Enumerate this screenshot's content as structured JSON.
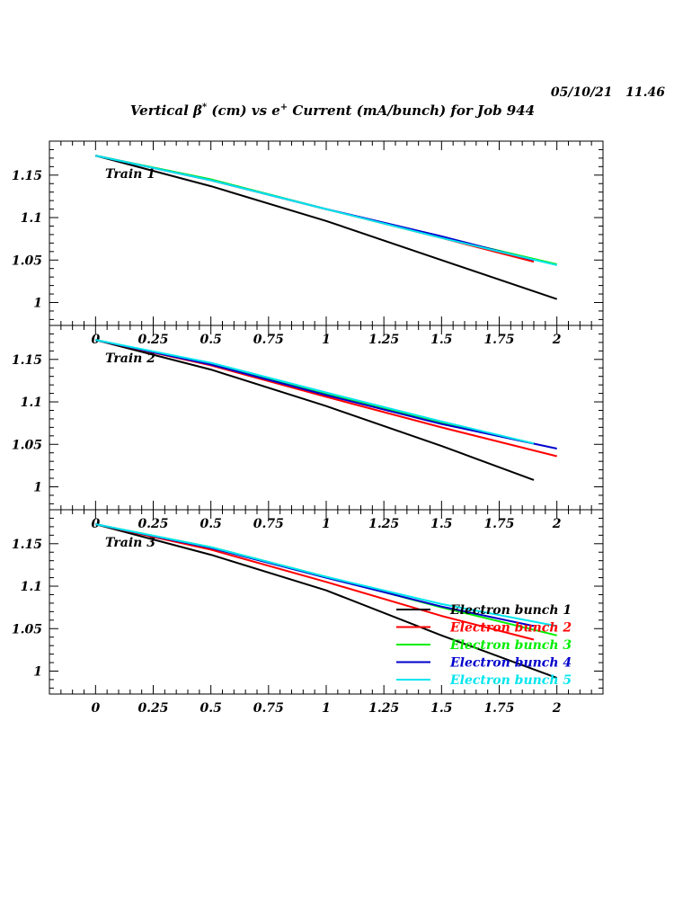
{
  "datestamp": "05/10/21   11.46",
  "title": {
    "prefix": "Vertical β",
    "sup1": "*",
    "middle": " (cm) vs e",
    "sup2": "+",
    "suffix": " Current (mA/bunch) for Job 944"
  },
  "colors": {
    "Electron bunch 1": "#000000",
    "Electron bunch 2": "#ff0000",
    "Electron bunch 3": "#00ee00",
    "Electron bunch 4": "#0000cc",
    "Electron bunch 5": "#00e5ee"
  },
  "chart_data": [
    {
      "type": "line",
      "annotation": "Train 1",
      "xlim": [
        -0.2,
        2.2
      ],
      "ylim": [
        0.973,
        1.19
      ],
      "xticks": [
        "0",
        "0.25",
        "0.5",
        "0.75",
        "1",
        "1.25",
        "1.5",
        "1.75",
        "2"
      ],
      "yticks": [
        "1",
        "1.05",
        "1.1",
        "1.15"
      ],
      "series": [
        {
          "name": "Electron bunch 1",
          "x": [
            0,
            0.5,
            1,
            1.5,
            2
          ],
          "y": [
            1.173,
            1.137,
            1.096,
            1.05,
            1.004
          ]
        },
        {
          "name": "Electron bunch 2",
          "x": [
            0,
            0.5,
            1,
            1.5,
            1.9
          ],
          "y": [
            1.173,
            1.144,
            1.11,
            1.076,
            1.048
          ]
        },
        {
          "name": "Electron bunch 3",
          "x": [
            0,
            0.5,
            1,
            1.5,
            2
          ],
          "y": [
            1.173,
            1.145,
            1.11,
            1.077,
            1.045
          ]
        },
        {
          "name": "Electron bunch 4",
          "x": [
            0,
            0.5,
            1,
            1.5,
            1.9
          ],
          "y": [
            1.173,
            1.144,
            1.11,
            1.078,
            1.05
          ]
        },
        {
          "name": "Electron bunch 5",
          "x": [
            0,
            0.5,
            1,
            1.5,
            2
          ],
          "y": [
            1.173,
            1.144,
            1.11,
            1.076,
            1.044
          ]
        }
      ]
    },
    {
      "type": "line",
      "annotation": "Train 2",
      "xlim": [
        -0.2,
        2.2
      ],
      "ylim": [
        0.973,
        1.19
      ],
      "xticks": [
        "0",
        "0.25",
        "0.5",
        "0.75",
        "1",
        "1.25",
        "1.5",
        "1.75",
        "2"
      ],
      "yticks": [
        "1",
        "1.05",
        "1.1",
        "1.15"
      ],
      "series": [
        {
          "name": "Electron bunch 1",
          "x": [
            0,
            0.5,
            1,
            1.5,
            1.9
          ],
          "y": [
            1.173,
            1.138,
            1.095,
            1.048,
            1.008
          ]
        },
        {
          "name": "Electron bunch 2",
          "x": [
            0,
            0.5,
            1,
            1.5,
            2
          ],
          "y": [
            1.173,
            1.143,
            1.106,
            1.07,
            1.036
          ]
        },
        {
          "name": "Electron bunch 3",
          "x": [
            0,
            0.5,
            1,
            1.5,
            1.9
          ],
          "y": [
            1.173,
            1.145,
            1.11,
            1.076,
            1.051
          ]
        },
        {
          "name": "Electron bunch 4",
          "x": [
            0,
            0.5,
            1,
            1.5,
            2
          ],
          "y": [
            1.173,
            1.144,
            1.108,
            1.074,
            1.045
          ]
        },
        {
          "name": "Electron bunch 5",
          "x": [
            0,
            0.5,
            1,
            1.5,
            1.9
          ],
          "y": [
            1.173,
            1.146,
            1.111,
            1.077,
            1.051
          ]
        }
      ]
    },
    {
      "type": "line",
      "annotation": "Train 3",
      "xlim": [
        -0.2,
        2.2
      ],
      "ylim": [
        0.973,
        1.19
      ],
      "xticks": [
        "0",
        "0.25",
        "0.5",
        "0.75",
        "1",
        "1.25",
        "1.5",
        "1.75",
        "2"
      ],
      "yticks": [
        "1",
        "1.05",
        "1.1",
        "1.15"
      ],
      "legend": "bottom-right",
      "series": [
        {
          "name": "Electron bunch 1",
          "x": [
            0,
            0.5,
            1,
            1.5,
            2
          ],
          "y": [
            1.173,
            1.137,
            1.095,
            1.042,
            0.992
          ]
        },
        {
          "name": "Electron bunch 2",
          "x": [
            0,
            0.5,
            1,
            1.5,
            1.9
          ],
          "y": [
            1.173,
            1.143,
            1.105,
            1.065,
            1.037
          ]
        },
        {
          "name": "Electron bunch 3",
          "x": [
            0,
            0.5,
            1,
            1.5,
            2
          ],
          "y": [
            1.173,
            1.146,
            1.111,
            1.075,
            1.042
          ]
        },
        {
          "name": "Electron bunch 4",
          "x": [
            0,
            0.5,
            1,
            1.5,
            1.9
          ],
          "y": [
            1.173,
            1.145,
            1.11,
            1.076,
            1.053
          ]
        },
        {
          "name": "Electron bunch 5",
          "x": [
            0,
            0.5,
            1,
            1.5,
            2
          ],
          "y": [
            1.173,
            1.146,
            1.111,
            1.079,
            1.053
          ]
        }
      ]
    }
  ]
}
